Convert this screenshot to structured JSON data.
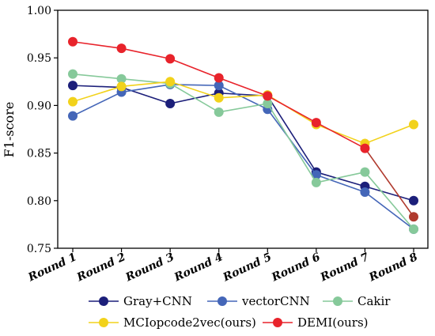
{
  "chart_data": {
    "type": "line",
    "ylabel": "F1-score",
    "xlabel": "",
    "ylim": [
      0.75,
      1.0
    ],
    "yticks": [
      "0.75",
      "0.80",
      "0.85",
      "0.90",
      "0.95",
      "1.00"
    ],
    "categories": [
      "Round 1",
      "Round 2",
      "Round 3",
      "Round 4",
      "Round 5",
      "Round 6",
      "Round 7",
      "Round 8"
    ],
    "grid": false,
    "legend_position": "bottom",
    "series": [
      {
        "name": "Gray+CNN",
        "color": "#1c1f7a",
        "values": [
          0.921,
          0.919,
          0.902,
          0.913,
          0.91,
          0.83,
          0.815,
          0.8
        ]
      },
      {
        "name": "vectorCNN",
        "color": "#4466b8",
        "values": [
          0.889,
          0.914,
          0.922,
          0.921,
          0.896,
          0.827,
          0.809,
          0.77
        ]
      },
      {
        "name": "Cakir",
        "color": "#86c99a",
        "values": [
          0.933,
          0.928,
          0.923,
          0.893,
          0.902,
          0.819,
          0.83,
          0.77
        ]
      },
      {
        "name": "MCIopcode2vec(ours)",
        "color": "#f2d21b",
        "values": [
          0.904,
          0.92,
          0.925,
          0.908,
          0.911,
          0.88,
          0.86,
          0.88
        ]
      },
      {
        "name": "DEMI(ours)",
        "color": "#e8232b",
        "values": [
          0.967,
          0.96,
          0.949,
          0.929,
          0.91,
          0.882,
          0.855,
          0.783
        ],
        "line_colors": [
          "#e8232b",
          "#e8232b",
          "#e8232b",
          "#e8232b",
          "#e8232b",
          "#e8232b",
          "#b03a2e"
        ],
        "marker_colors": [
          "#e8232b",
          "#e8232b",
          "#e8232b",
          "#e8232b",
          "#e8232b",
          "#e8232b",
          "#e8232b",
          "#b03a2e"
        ]
      }
    ]
  }
}
